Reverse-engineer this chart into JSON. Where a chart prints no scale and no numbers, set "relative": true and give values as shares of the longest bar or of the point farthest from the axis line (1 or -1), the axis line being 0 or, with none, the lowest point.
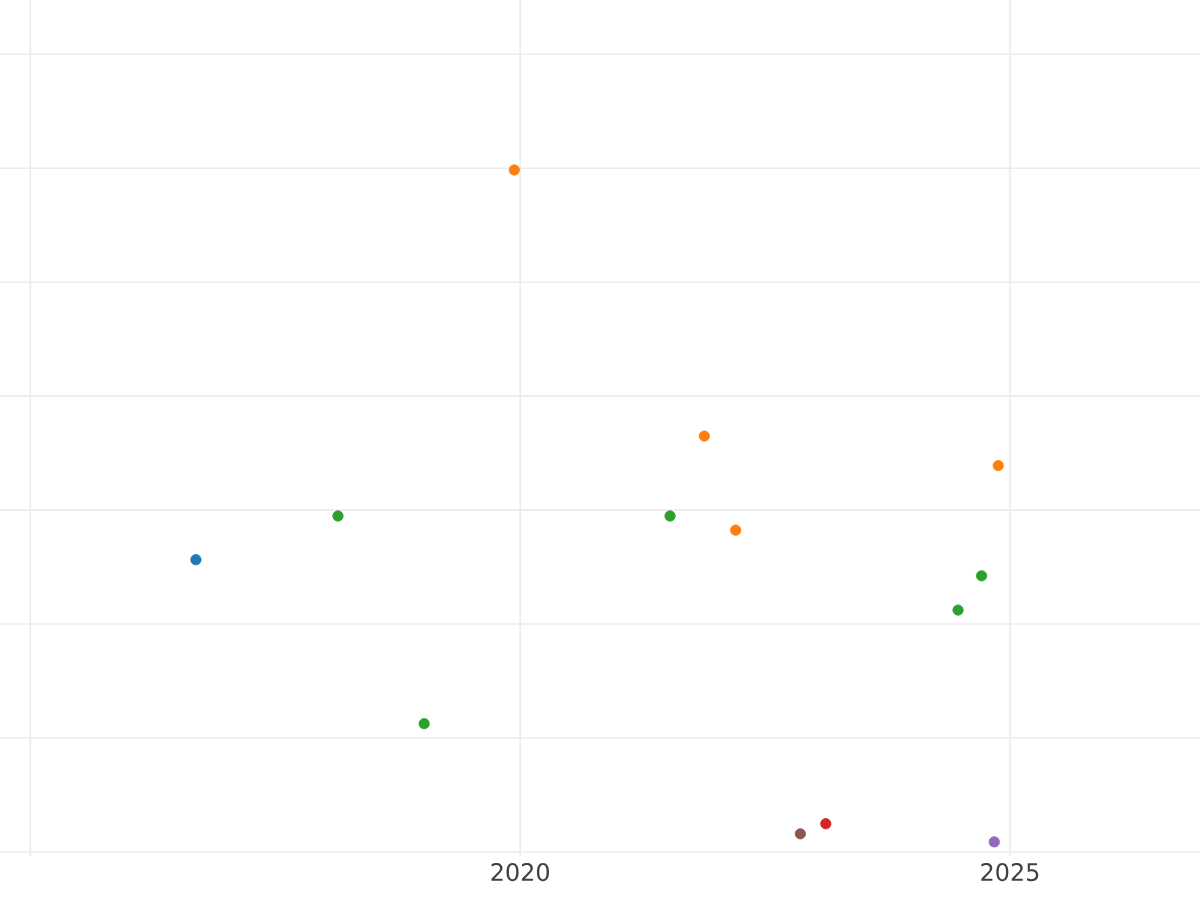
{
  "chart_data": {
    "type": "scatter",
    "relative": true,
    "grid": true,
    "tick_labels": "x",
    "xlim": [
      2014.69,
      2026.94
    ],
    "xticks": [
      {
        "value": 2015,
        "label": null
      },
      2020,
      2025
    ],
    "series": [
      {
        "color": "#1f77b4",
        "x": [
          2016.69
        ],
        "values": [
          0.42
        ]
      },
      {
        "color": "#ff7f0e",
        "x": [
          2019.94,
          2021.88,
          2022.2,
          2024.88
        ],
        "values": [
          1,
          0.604,
          0.464,
          0.56
        ]
      },
      {
        "color": "#2ca02c",
        "x": [
          2018.14,
          2019.02,
          2021.53,
          2024.47,
          2024.71
        ],
        "values": [
          0.485,
          0.176,
          0.485,
          0.345,
          0.396
        ]
      },
      {
        "color": "#d62728",
        "x": [
          2023.12
        ],
        "values": [
          0.027
        ]
      },
      {
        "color": "#9467bd",
        "x": [
          2024.84
        ],
        "values": [
          0
        ]
      },
      {
        "color": "#8c564b",
        "x": [
          2022.86
        ],
        "values": [
          0.012
        ]
      }
    ]
  }
}
